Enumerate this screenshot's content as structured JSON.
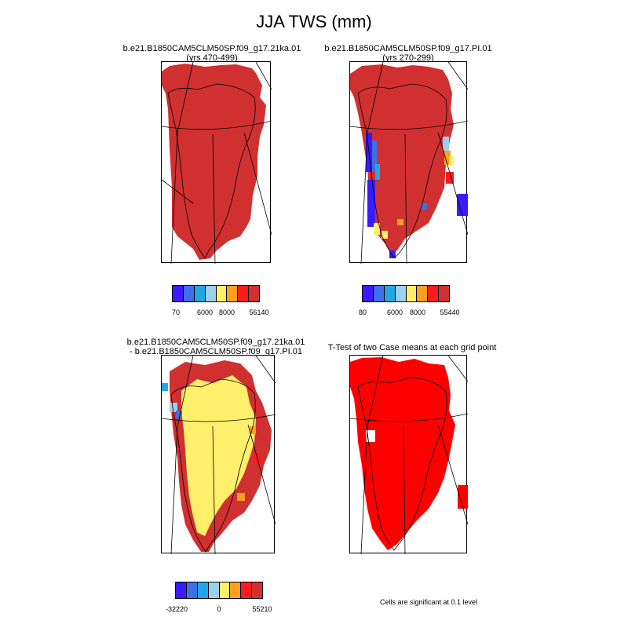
{
  "figure": {
    "title": "JJA TWS (mm)"
  },
  "panels": [
    {
      "title_line1": "b.e21.B1850CAM5CLM50SP.f09_g17.21ka.01",
      "title_line2": "(yrs 470-499)",
      "legend": {
        "colors": [
          "#3a1aff",
          "#3f6ee8",
          "#23a6e6",
          "#9dd0ee",
          "#ffef6a",
          "#ff9f1c",
          "#ff1b1b",
          "#d03030"
        ],
        "labels": [
          "70",
          "6000",
          "8000",
          "56140"
        ]
      }
    },
    {
      "title_line1": "b.e21.B1850CAM5CLM50SP.f09_g17.PI.01",
      "title_line2": "(yrs 270-299)",
      "legend": {
        "colors": [
          "#3a1aff",
          "#3f6ee8",
          "#23a6e6",
          "#9dd0ee",
          "#ffef6a",
          "#ff9f1c",
          "#ff1b1b",
          "#d03030"
        ],
        "labels": [
          "80",
          "6000",
          "8000",
          "55440"
        ]
      }
    },
    {
      "title_line1": "b.e21.B1850CAM5CLM50SP.f09_g17.21ka.01",
      "title_line2": "- b.e21.B1850CAM5CLM50SP.f09_g17.PI.01",
      "legend": {
        "colors": [
          "#3a1aff",
          "#3f6ee8",
          "#23a6e6",
          "#9dd0ee",
          "#ffef6a",
          "#ff9f1c",
          "#ff1b1b",
          "#d03030"
        ],
        "labels": [
          "-32220",
          "0",
          "55210"
        ]
      }
    },
    {
      "title_line1": "T-Test of two Case means at each grid point",
      "footnote": "Cells are significant at 0.1 level"
    }
  ],
  "colors": {
    "ice_dark_red": "#d03030",
    "sig_red": "#ff0000",
    "diff_yellow": "#ffef6a"
  }
}
